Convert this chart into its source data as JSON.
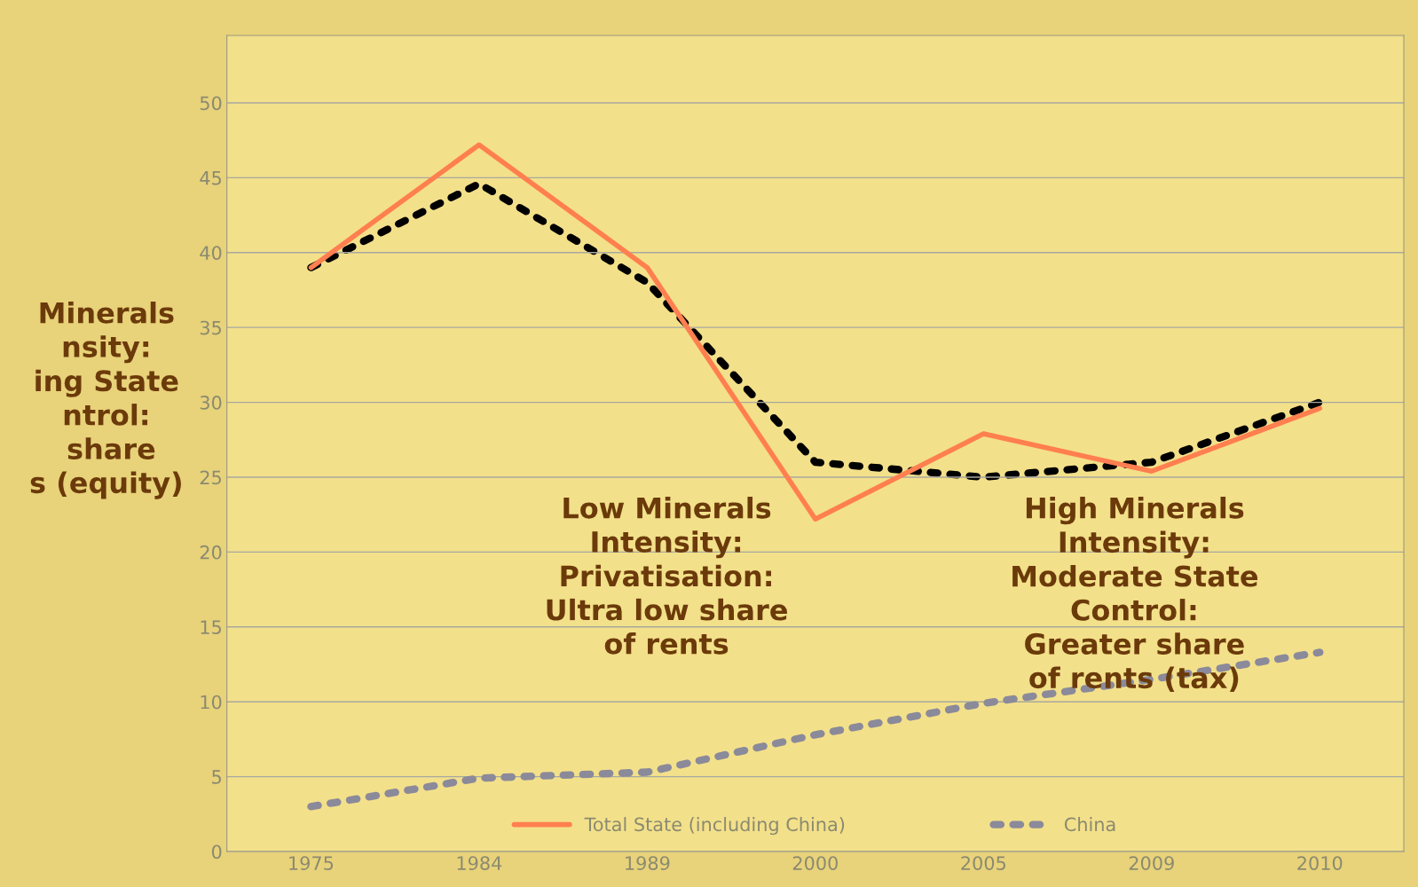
{
  "chart_data": {
    "type": "line",
    "categories": [
      "1975",
      "1984",
      "1989",
      "2000",
      "2005",
      "2009",
      "2010"
    ],
    "series": [
      {
        "name": "Total State (including China)",
        "color": "#ff7f50",
        "line_style": "solid",
        "values": [
          39.0,
          47.2,
          39.0,
          22.2,
          27.9,
          25.4,
          29.6
        ]
      },
      {
        "name": "China",
        "color": "#8a8a9a",
        "line_style": "dotted",
        "values": [
          3.0,
          4.9,
          5.3,
          7.8,
          9.9,
          11.5,
          13.3
        ]
      },
      {
        "color": "#000000",
        "line_style": "dotted",
        "values": [
          39.0,
          44.6,
          38.0,
          26.0,
          25.0,
          26.0,
          30.0
        ]
      }
    ],
    "ylim": [
      0,
      54.5
    ],
    "yticks": [
      0,
      5,
      10,
      15,
      20,
      25,
      30,
      35,
      40,
      45,
      50
    ],
    "grid": "y",
    "legend": "bottom",
    "marker": "none",
    "annotations": [
      "Minerals\nnsity:\ning State\nntrol:\n share\ns (equity)",
      "Low Minerals\nIntensity:\nPrivatisation:\nUltra low share\nof rents",
      "High Minerals\nIntensity:\nModerate State\nControl:\nGreater share\nof rents (tax)"
    ]
  }
}
